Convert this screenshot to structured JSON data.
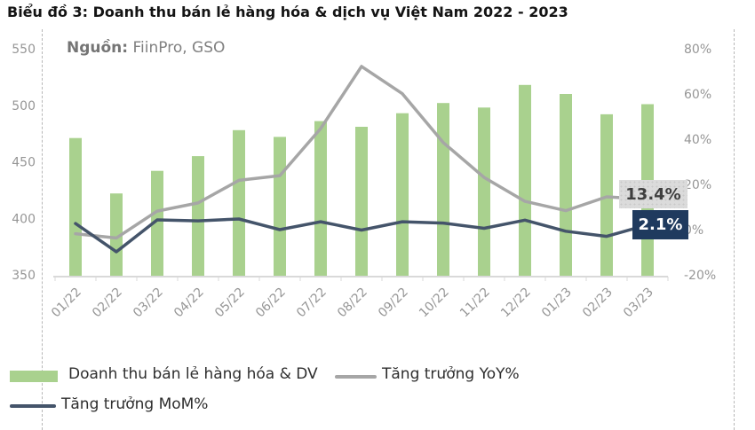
{
  "title": "Biểu đồ 3: Doanh thu bán lẻ hàng hóa & dịch vụ Việt Nam 2022 - 2023",
  "source": {
    "label": "Nguồn:",
    "value": " FiinPro, GSO"
  },
  "data_labels": {
    "yoy_end": "13.4%",
    "mom_end": "2.1%"
  },
  "colors": {
    "bar": "#a9d18e",
    "yoy_line": "#a6a6a6",
    "mom_line": "#44546a",
    "mom_label_bg": "#1f3a5e",
    "yoy_label_bg": "#dbdbdb",
    "axis_line": "#d9d9d9",
    "axis_text": "#969696"
  },
  "chart_data": {
    "type": "bar",
    "subtype": "combo-bar-line-dual-axis",
    "categories": [
      "01/22",
      "02/22",
      "03/22",
      "04/22",
      "05/22",
      "06/22",
      "07/22",
      "08/22",
      "09/22",
      "10/22",
      "11/22",
      "12/22",
      "01/23",
      "02/23",
      "03/23"
    ],
    "series": [
      {
        "name": "Doanh thu bán lẻ hàng hóa & DV",
        "type": "bar",
        "axis": "left",
        "color": "#a9d18e",
        "values": [
          471,
          422,
          442,
          455,
          478,
          472,
          486,
          481,
          493,
          502,
          498,
          518,
          510,
          492,
          501
        ]
      },
      {
        "name": "Tăng trưởng YoY%",
        "type": "line",
        "axis": "right",
        "color": "#a6a6a6",
        "values": [
          -1.8,
          -3.7,
          8.2,
          11.8,
          21.8,
          23.9,
          44.7,
          72.2,
          60.1,
          38.5,
          23.1,
          12.5,
          8.4,
          14.5,
          13.4
        ]
      },
      {
        "name": "Tăng trưởng MoM%",
        "type": "line",
        "axis": "right",
        "color": "#44546a",
        "values": [
          2.7,
          -9.8,
          4.3,
          3.9,
          4.7,
          0.0,
          3.5,
          -0.2,
          3.5,
          2.9,
          0.6,
          4.2,
          -0.7,
          -3.0,
          2.1
        ]
      }
    ],
    "left_axis": {
      "min": 350,
      "max": 550,
      "ticks": [
        550,
        500,
        450,
        400,
        350
      ]
    },
    "right_axis": {
      "min": -20,
      "max": 80,
      "ticks": [
        "80%",
        "60%",
        "40%",
        "20%",
        "0%",
        "-20%"
      ],
      "tick_values": [
        80,
        60,
        40,
        20,
        0,
        -20
      ]
    },
    "grid": false,
    "legend_position": "bottom-left",
    "annotations": [
      {
        "series": "Tăng trưởng YoY%",
        "point": "03/23",
        "text": "13.4%"
      },
      {
        "series": "Tăng trưởng MoM%",
        "point": "03/23",
        "text": "2.1%"
      }
    ]
  }
}
